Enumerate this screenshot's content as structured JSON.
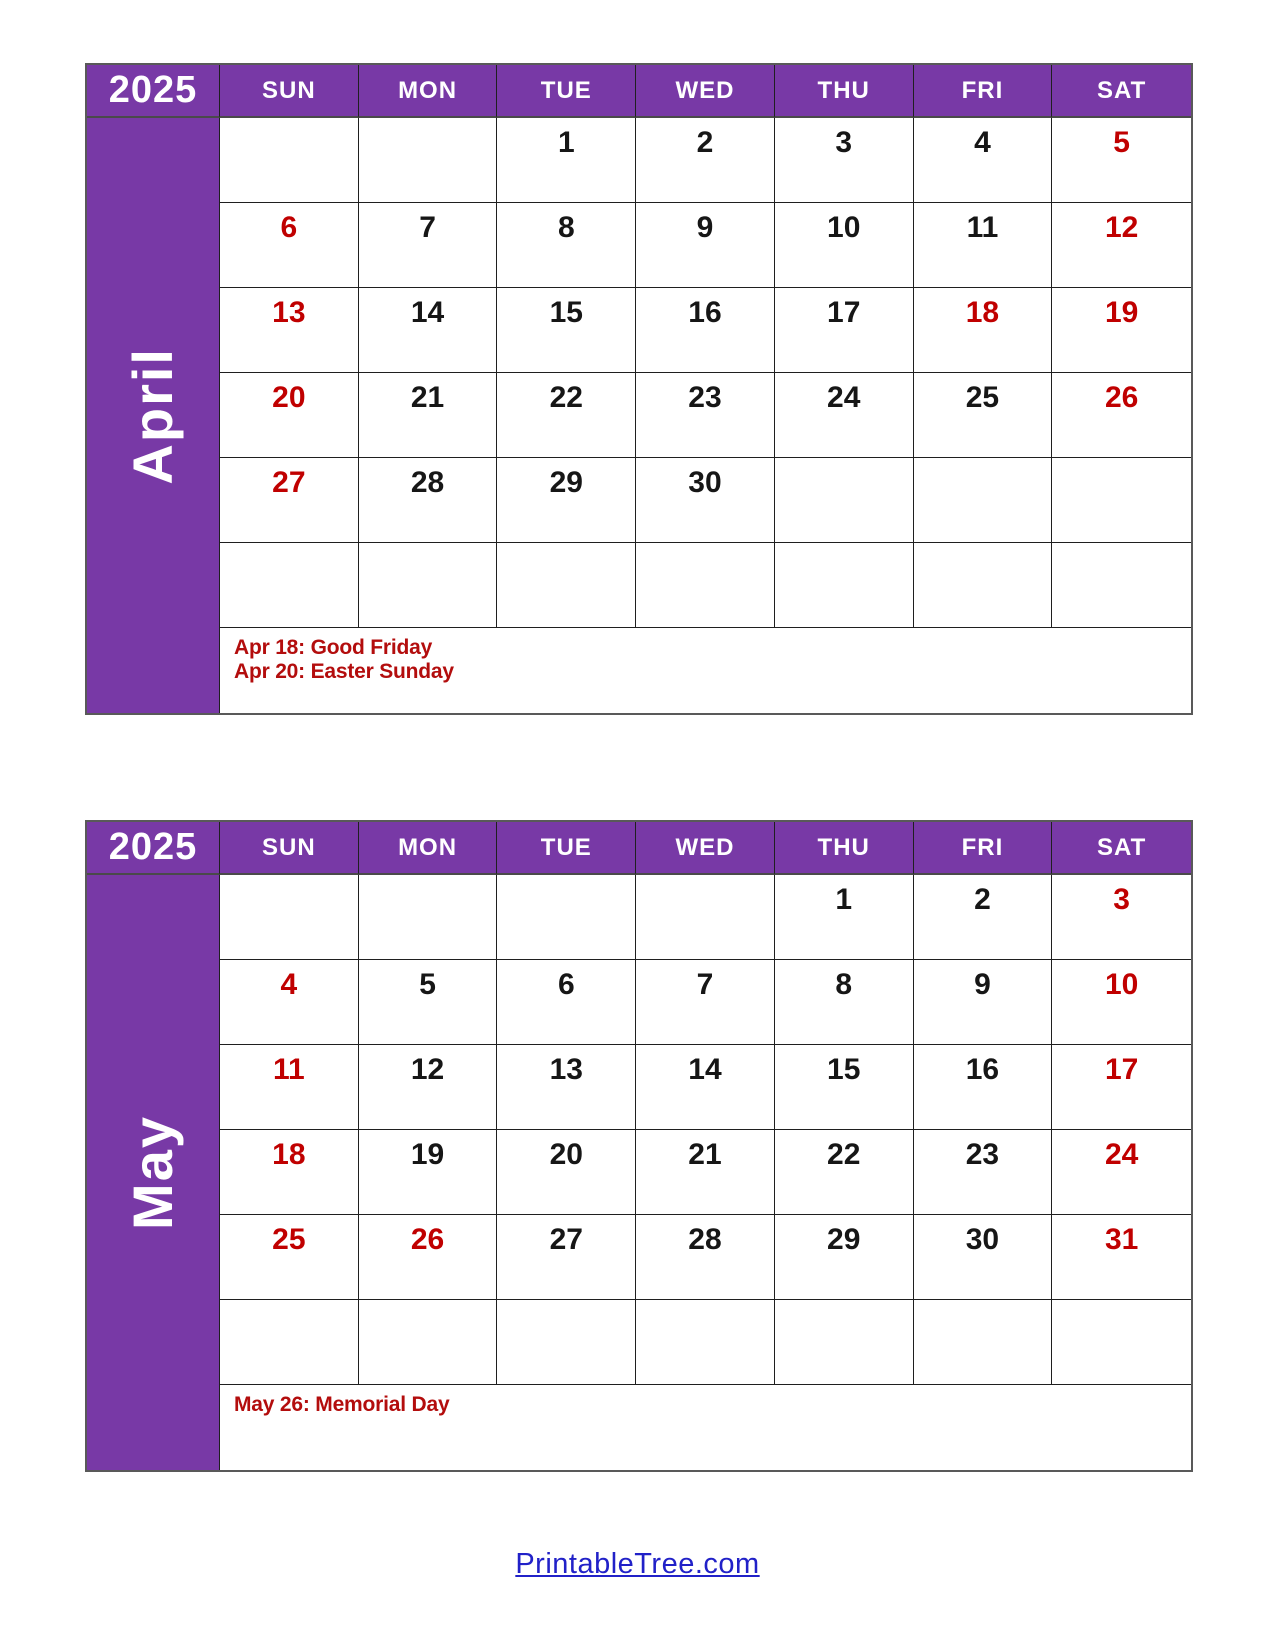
{
  "colors": {
    "purple": "#7839A6",
    "weekend_red": "#C00000",
    "holiday_red": "#B30D0D",
    "day_number_black": "#161616",
    "grid_line": "#1F1F1F",
    "outer_border": "#595959",
    "link_blue": "#2121C8"
  },
  "months": [
    {
      "year": "2025",
      "name": "April",
      "day_headers": [
        "SUN",
        "MON",
        "TUE",
        "WED",
        "THU",
        "FRI",
        "SAT"
      ],
      "weeks": [
        [
          "",
          "",
          "1",
          "2",
          "3",
          "4",
          "5"
        ],
        [
          "6",
          "7",
          "8",
          "9",
          "10",
          "11",
          "12"
        ],
        [
          "13",
          "14",
          "15",
          "16",
          "17",
          "18",
          "19"
        ],
        [
          "20",
          "21",
          "22",
          "23",
          "24",
          "25",
          "26"
        ],
        [
          "27",
          "28",
          "29",
          "30",
          "",
          "",
          ""
        ],
        [
          "",
          "",
          "",
          "",
          "",
          "",
          ""
        ]
      ],
      "red_dates": [
        "5",
        "6",
        "12",
        "13",
        "18",
        "19",
        "20",
        "26",
        "27"
      ],
      "holiday_lines": [
        "Apr 18: Good Friday",
        "Apr 20: Easter Sunday"
      ]
    },
    {
      "year": "2025",
      "name": "May",
      "day_headers": [
        "SUN",
        "MON",
        "TUE",
        "WED",
        "THU",
        "FRI",
        "SAT"
      ],
      "weeks": [
        [
          "",
          "",
          "",
          "",
          "1",
          "2",
          "3"
        ],
        [
          "4",
          "5",
          "6",
          "7",
          "8",
          "9",
          "10"
        ],
        [
          "11",
          "12",
          "13",
          "14",
          "15",
          "16",
          "17"
        ],
        [
          "18",
          "19",
          "20",
          "21",
          "22",
          "23",
          "24"
        ],
        [
          "25",
          "26",
          "27",
          "28",
          "29",
          "30",
          "31"
        ],
        [
          "",
          "",
          "",
          "",
          "",
          "",
          ""
        ]
      ],
      "red_dates": [
        "3",
        "4",
        "10",
        "11",
        "17",
        "18",
        "24",
        "25",
        "26",
        "31"
      ],
      "holiday_lines": [
        "May 26: Memorial Day"
      ]
    }
  ],
  "footer": {
    "link_text": "PrintableTree.com"
  }
}
